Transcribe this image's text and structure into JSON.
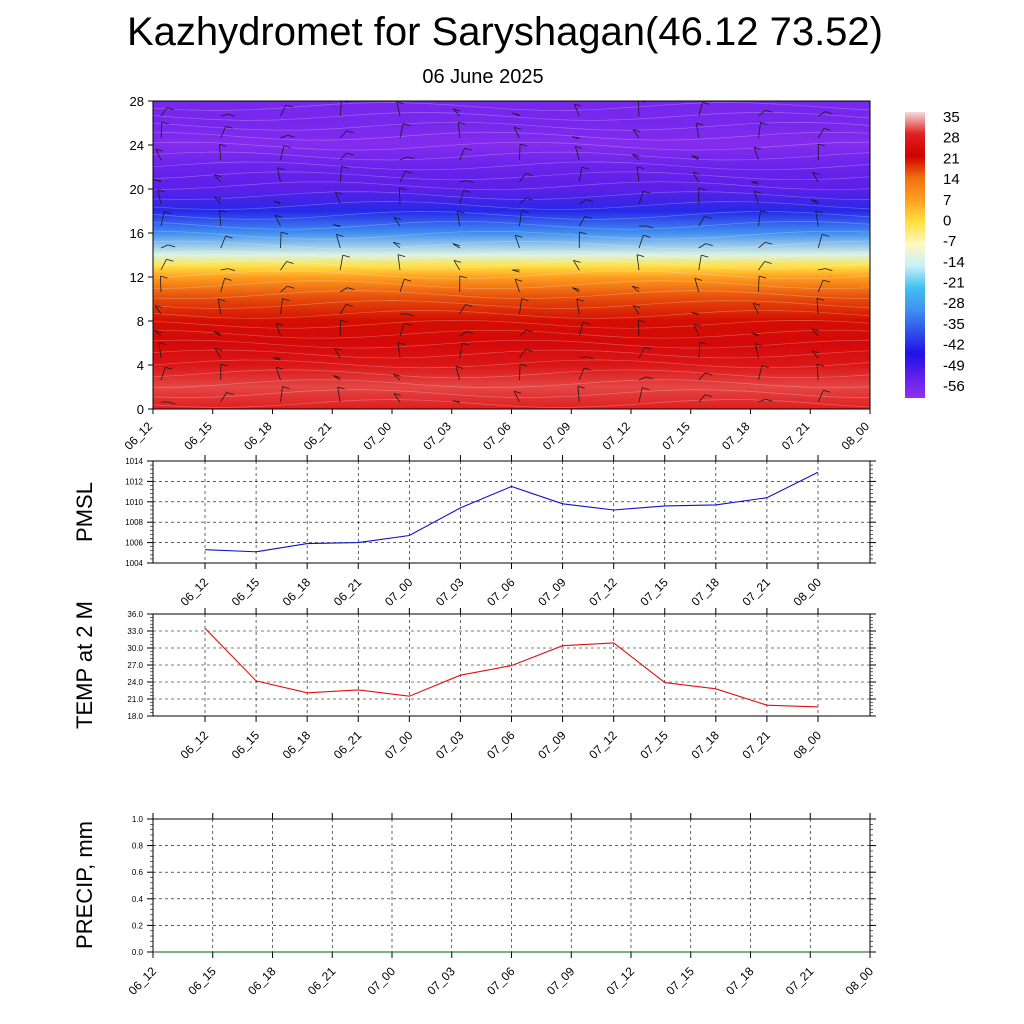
{
  "page": {
    "title": "Kazhydromet for Saryshagan(46.12 73.52)",
    "subtitle": "06 June 2025"
  },
  "times": [
    "06_12",
    "06_15",
    "06_18",
    "06_21",
    "07_00",
    "07_03",
    "07_06",
    "07_09",
    "07_12",
    "07_15",
    "07_18",
    "07_21",
    "08_00"
  ],
  "chart_data": [
    {
      "type": "heatmap",
      "ylim": [
        0,
        28
      ],
      "yticks": [
        0,
        4,
        8,
        12,
        16,
        20,
        24,
        28
      ],
      "x": [
        "06_12",
        "06_15",
        "06_18",
        "06_21",
        "07_00",
        "07_03",
        "07_06",
        "07_09",
        "07_12",
        "07_15",
        "07_18",
        "07_21",
        "08_00"
      ],
      "colorbar_labels": [
        "35",
        "28",
        "21",
        "14",
        "7",
        "0",
        "-7",
        "-14",
        "-21",
        "-28",
        "-35",
        "-42",
        "-49",
        "-56"
      ],
      "colorbar_range": [
        -60,
        38
      ],
      "colorbar_stops": [
        "#f4dcdc",
        "#e02020",
        "#d00000",
        "#f07010",
        "#ffa020",
        "#ffe040",
        "#fff8c0",
        "#c8f0f8",
        "#40c0f0",
        "#4090f0",
        "#3050e8",
        "#2010e8",
        "#6020e8",
        "#9030f0"
      ],
      "profile_heights": [
        0,
        2,
        4,
        6,
        8,
        10,
        12,
        13,
        14,
        16,
        18,
        20,
        22,
        24,
        26,
        28
      ],
      "profile_temps": [
        30,
        32,
        28,
        25,
        22,
        18,
        8,
        0,
        -12,
        -30,
        -42,
        -52,
        -54,
        -58,
        -56,
        -56
      ],
      "grid": false,
      "wind_barbs": true
    },
    {
      "type": "line",
      "ylabel": "PMSL",
      "x": [
        "06_12",
        "06_15",
        "06_18",
        "06_21",
        "07_00",
        "07_03",
        "07_06",
        "07_09",
        "07_12",
        "07_15",
        "07_18",
        "07_21",
        "08_00"
      ],
      "series": [
        {
          "values": [
            1005.3,
            1005.1,
            1005.9,
            1006.0,
            1006.7,
            1009.4,
            1011.5,
            1009.8,
            1009.2,
            1009.6,
            1009.7,
            1010.4,
            1012.9
          ],
          "color": "#1010d0"
        }
      ],
      "ylim": [
        1004,
        1014
      ],
      "yticks": [
        1004,
        1006,
        1008,
        1010,
        1012,
        1014
      ],
      "ytick_labels": [
        "1004",
        "1006",
        "1008",
        "1010",
        "1012",
        "1014"
      ],
      "grid": true
    },
    {
      "type": "line",
      "ylabel": "TEMP at 2 M",
      "x": [
        "06_12",
        "06_15",
        "06_18",
        "06_21",
        "07_00",
        "07_03",
        "07_06",
        "07_09",
        "07_12",
        "07_15",
        "07_18",
        "07_21",
        "08_00"
      ],
      "series": [
        {
          "values": [
            33.5,
            24.2,
            22.1,
            22.6,
            21.5,
            25.2,
            26.9,
            30.4,
            30.9,
            23.9,
            22.8,
            19.9,
            19.6
          ],
          "color": "#e01010"
        }
      ],
      "ylim": [
        18,
        36
      ],
      "yticks": [
        18,
        21,
        24,
        27,
        30,
        33,
        36
      ],
      "ytick_labels": [
        "18.0",
        "21.0",
        "24.0",
        "27.0",
        "30.0",
        "33.0",
        "36.0"
      ],
      "grid": true
    },
    {
      "type": "line",
      "ylabel": "PRECIP, mm",
      "x": [
        "06_12",
        "06_15",
        "06_18",
        "06_21",
        "07_00",
        "07_03",
        "07_06",
        "07_09",
        "07_12",
        "07_15",
        "07_18",
        "07_21",
        "08_00"
      ],
      "series": [
        {
          "values": [
            0,
            0,
            0,
            0,
            0,
            0,
            0,
            0,
            0,
            0,
            0,
            0,
            0
          ],
          "color": "#006400"
        }
      ],
      "ylim": [
        0,
        1
      ],
      "yticks": [
        0,
        0.2,
        0.4,
        0.6,
        0.8,
        1.0
      ],
      "ytick_labels": [
        "0.0",
        "0.2",
        "0.4",
        "0.6",
        "0.8",
        "1.0"
      ],
      "grid": true
    }
  ]
}
